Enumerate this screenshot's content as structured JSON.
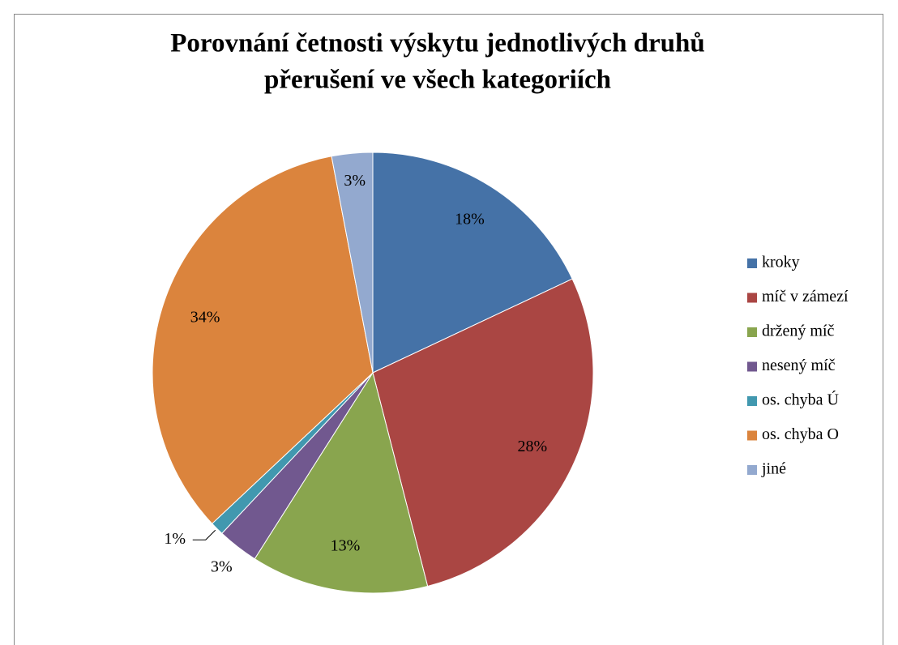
{
  "chart_data": {
    "type": "pie",
    "title": [
      "Porovnání  četnosti výskytu jednotlivých druhů",
      "přerušení ve všech kategoriích"
    ],
    "categories": [
      "kroky",
      "míč v zámezí",
      "držený míč",
      "nesený míč",
      "os. chyba Ú",
      "os. chyba O",
      "jiné"
    ],
    "values": [
      18,
      28,
      13,
      3,
      1,
      34,
      3
    ],
    "value_labels": [
      "18%",
      "28%",
      "13%",
      "3%",
      "1%",
      "34%",
      "3%"
    ],
    "colors": [
      "#4572a7",
      "#aa4643",
      "#89a54e",
      "#71588f",
      "#4198af",
      "#db843d",
      "#93a9cf"
    ],
    "legend": "right"
  }
}
